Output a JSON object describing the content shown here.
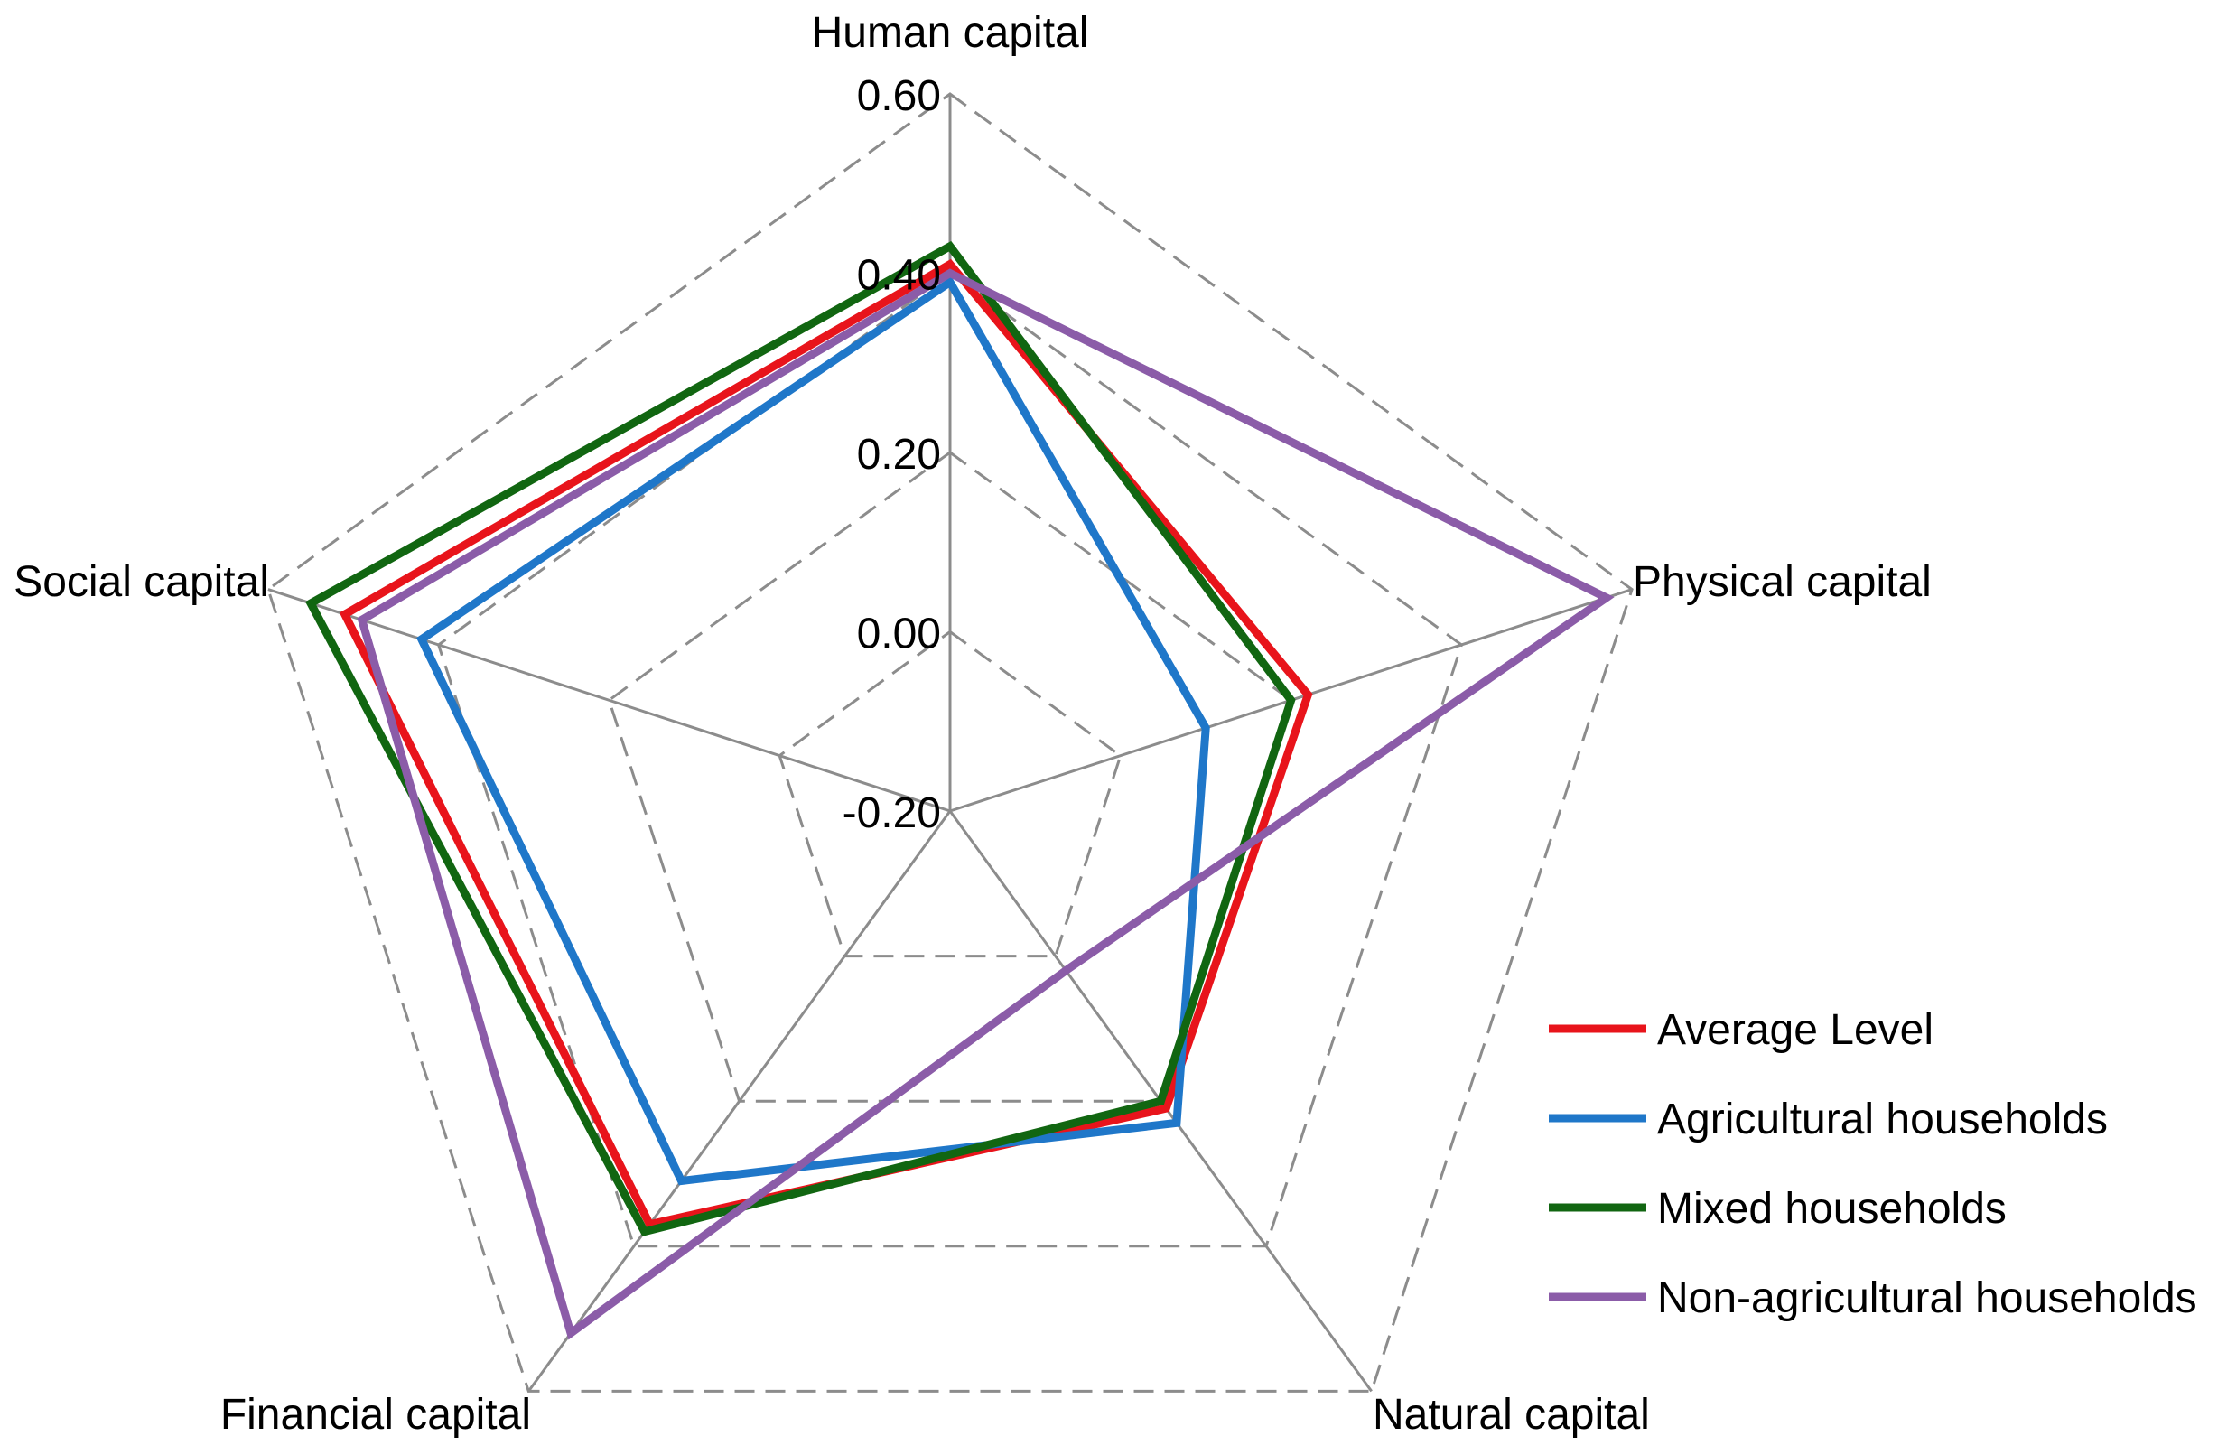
{
  "chart_data": {
    "type": "radar",
    "axes": [
      "Human capital",
      "Physical capital",
      "Natural capital",
      "Financial capital",
      "Social capital"
    ],
    "rlim": [
      -0.2,
      0.6
    ],
    "ticks": [
      -0.2,
      0.0,
      0.2,
      0.4,
      0.6
    ],
    "tick_labels": [
      "-0.20",
      "0.00",
      "0.20",
      "0.40",
      "0.60"
    ],
    "grid": "dashed",
    "legend_position": "bottom-right",
    "series": [
      {
        "name": "Average Level",
        "color": "#e8141b",
        "values": [
          0.41,
          0.22,
          0.21,
          0.37,
          0.51
        ]
      },
      {
        "name": "Agricultural households",
        "color": "#1f77c9",
        "values": [
          0.39,
          0.1,
          0.23,
          0.31,
          0.42
        ]
      },
      {
        "name": "Mixed households",
        "color": "#116611",
        "values": [
          0.43,
          0.2,
          0.2,
          0.38,
          0.55
        ]
      },
      {
        "name": "Non-agricultural households",
        "color": "#8b5ca8",
        "values": [
          0.4,
          0.57,
          0.02,
          0.52,
          0.49
        ]
      }
    ]
  }
}
